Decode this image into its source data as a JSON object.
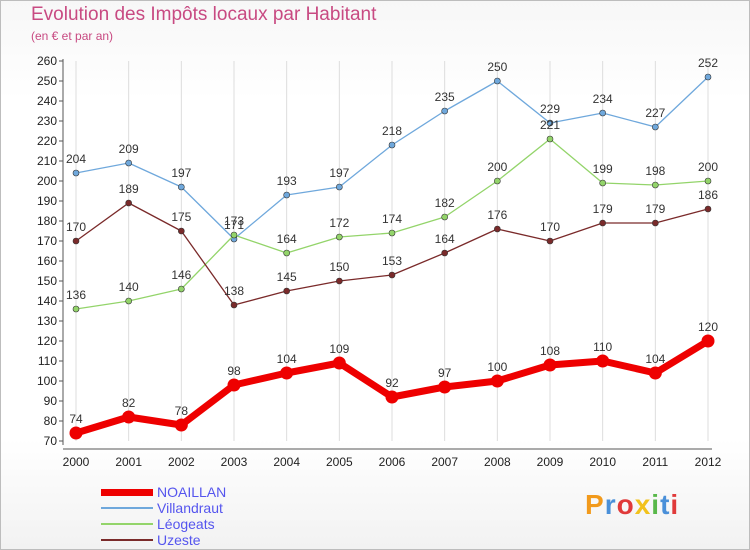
{
  "title": "Evolution des Impôts locaux par Habitant",
  "subtitle": "(en € et par an)",
  "logo": {
    "text": "Proxiti",
    "colors": [
      "#f29a1c",
      "#4a90d9",
      "#e03a3a",
      "#f2c21c",
      "#59b84a",
      "#4a90d9",
      "#e03a3a"
    ]
  },
  "chart_data": {
    "type": "line",
    "x": [
      "2000",
      "2001",
      "2002",
      "2003",
      "2004",
      "2005",
      "2006",
      "2007",
      "2008",
      "2009",
      "2010",
      "2011",
      "2012"
    ],
    "ylim": [
      70,
      260
    ],
    "yticks": [
      70,
      80,
      90,
      100,
      110,
      120,
      130,
      140,
      150,
      160,
      170,
      180,
      190,
      200,
      210,
      220,
      230,
      240,
      250,
      260
    ],
    "grid": "vertical",
    "legend": "bottom-left",
    "series": [
      {
        "name": "NOAILLAN",
        "color": "#ee0000",
        "values": [
          74,
          82,
          78,
          98,
          104,
          109,
          92,
          97,
          100,
          108,
          110,
          104,
          120
        ]
      },
      {
        "name": "Villandraut",
        "color": "#6fa8dc",
        "values": [
          204,
          209,
          197,
          171,
          193,
          197,
          218,
          235,
          250,
          229,
          234,
          227,
          252
        ]
      },
      {
        "name": "Léogeats",
        "color": "#93d46a",
        "values": [
          136,
          140,
          146,
          173,
          164,
          172,
          174,
          182,
          200,
          221,
          199,
          198,
          200
        ]
      },
      {
        "name": "Uzeste",
        "color": "#7a2a2a",
        "values": [
          170,
          189,
          175,
          138,
          145,
          150,
          153,
          164,
          176,
          170,
          179,
          179,
          186
        ]
      }
    ]
  }
}
